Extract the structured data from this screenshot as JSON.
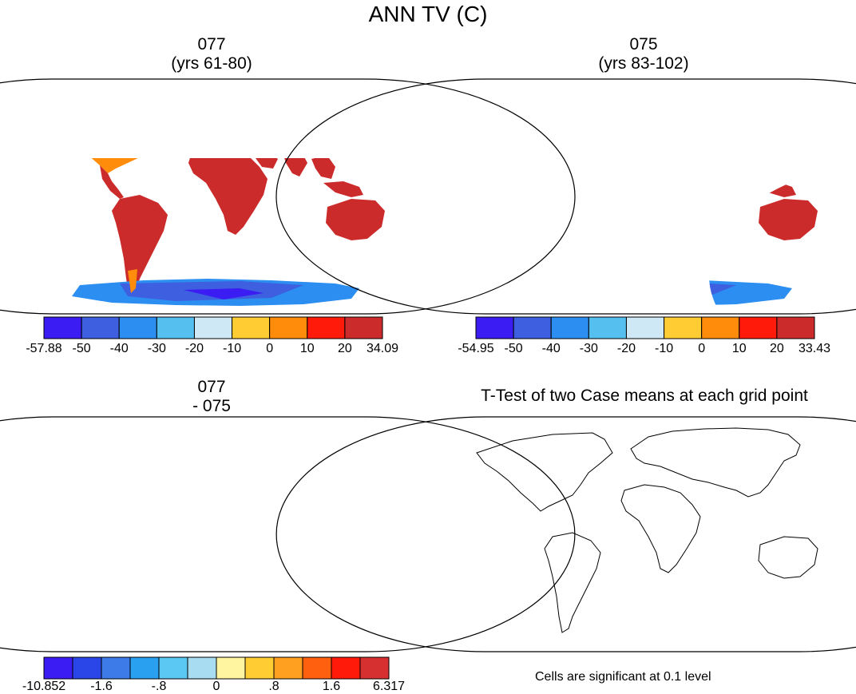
{
  "title": "ANN TV (C)",
  "panels": [
    {
      "id": "top-left",
      "title_line1": "077",
      "title_line2": "(yrs 61-80)",
      "colorbar": {
        "colors": [
          "#3b1cf3",
          "#3d5fe0",
          "#2b8ef0",
          "#55c0f0",
          "#cfe8f6",
          "#ffcc33",
          "#ff8c0a",
          "#ff1a0a",
          "#cc2b2b"
        ],
        "labels": [
          "-57.88",
          "-50",
          "-40",
          "-30",
          "-20",
          "-10",
          "0",
          "10",
          "20",
          "34.09"
        ]
      }
    },
    {
      "id": "top-right",
      "title_line1": "075",
      "title_line2": "(yrs 83-102)",
      "colorbar": {
        "colors": [
          "#3b1cf3",
          "#3d5fe0",
          "#2b8ef0",
          "#55c0f0",
          "#cfe8f6",
          "#ffcc33",
          "#ff8c0a",
          "#ff1a0a",
          "#cc2b2b"
        ],
        "labels": [
          "-54.95",
          "-50",
          "-40",
          "-30",
          "-20",
          "-10",
          "0",
          "10",
          "20",
          "33.43"
        ]
      }
    },
    {
      "id": "bottom-left",
      "title_line1": "077",
      "title_line2": "- 075",
      "colorbar": {
        "colors": [
          "#3b1cf3",
          "#2b46e8",
          "#3d7be8",
          "#2aa0f0",
          "#5ac8f2",
          "#a8dcf0",
          "#fff4a0",
          "#ffcc33",
          "#ffa020",
          "#ff6010",
          "#ff1a0a",
          "#d63030"
        ],
        "labels": [
          "-10.852",
          "-1.6",
          "-.8",
          "0",
          ".8",
          "1.6",
          "6.317"
        ]
      }
    },
    {
      "id": "bottom-right",
      "title_line1": "T-Test of two Case means at each grid point",
      "footnote": "Cells are significant at 0.1 level",
      "color": "#ff0000"
    }
  ]
}
